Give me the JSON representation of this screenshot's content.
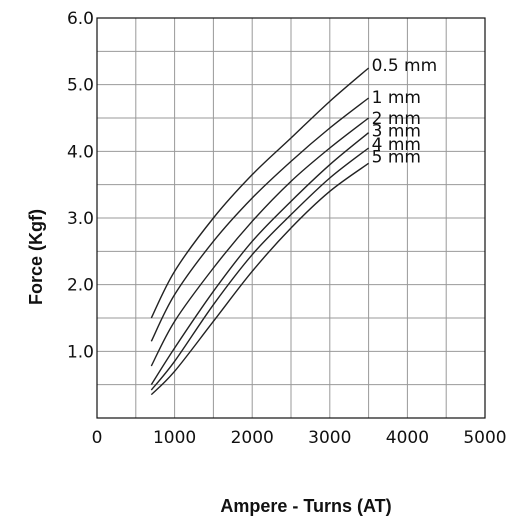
{
  "chart_data": {
    "type": "line",
    "title": "",
    "xlabel": "Ampere - Turns (AT)",
    "ylabel": "Force (Kgf)",
    "xlim": [
      0,
      5000
    ],
    "ylim": [
      0,
      6.0
    ],
    "x_ticks": [
      "0",
      "1000",
      "2000",
      "3000",
      "4000",
      "5000"
    ],
    "y_ticks": [
      "1.0",
      "2.0",
      "3.0",
      "4.0",
      "5.0",
      "6.0"
    ],
    "grid": true,
    "line_color": "#222222",
    "grid_color": "#999999",
    "series": [
      {
        "name": "0.5 mm",
        "x": [
          700,
          1000,
          1500,
          2000,
          2500,
          3000,
          3500
        ],
        "y": [
          1.5,
          2.2,
          3.0,
          3.65,
          4.2,
          4.75,
          5.25
        ]
      },
      {
        "name": "1 mm",
        "x": [
          700,
          1000,
          1500,
          2000,
          2500,
          3000,
          3500
        ],
        "y": [
          1.15,
          1.85,
          2.65,
          3.3,
          3.85,
          4.35,
          4.8
        ]
      },
      {
        "name": "2 mm",
        "x": [
          700,
          1000,
          1500,
          2000,
          2500,
          3000,
          3500
        ],
        "y": [
          0.78,
          1.45,
          2.25,
          2.95,
          3.55,
          4.05,
          4.5
        ]
      },
      {
        "name": "3 mm",
        "x": [
          700,
          1000,
          1500,
          2000,
          2500,
          3000,
          3500
        ],
        "y": [
          0.5,
          1.05,
          1.9,
          2.65,
          3.25,
          3.8,
          4.28
        ]
      },
      {
        "name": "4 mm",
        "x": [
          700,
          1000,
          1500,
          2000,
          2500,
          3000,
          3500
        ],
        "y": [
          0.42,
          0.85,
          1.7,
          2.45,
          3.05,
          3.6,
          4.05
        ]
      },
      {
        "name": "5 mm",
        "x": [
          700,
          1000,
          1500,
          2000,
          2500,
          3000,
          3500
        ],
        "y": [
          0.35,
          0.7,
          1.45,
          2.2,
          2.85,
          3.4,
          3.82
        ]
      }
    ]
  }
}
